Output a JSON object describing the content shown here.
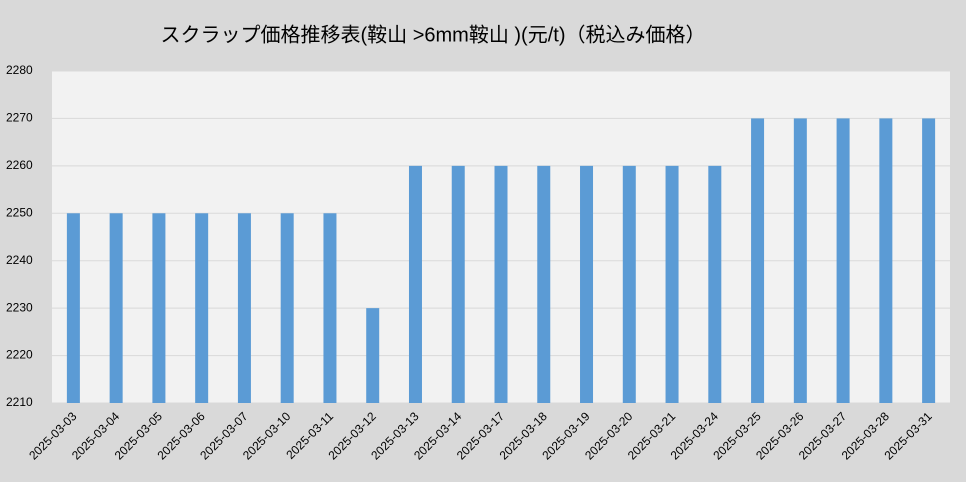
{
  "chart_data": {
    "type": "bar",
    "title": "スクラップ価格推移表(鞍山 >6mm鞍山 )(元/t)（税込み価格）",
    "categories": [
      "2025-03-03",
      "2025-03-04",
      "2025-03-05",
      "2025-03-06",
      "2025-03-07",
      "2025-03-10",
      "2025-03-11",
      "2025-03-12",
      "2025-03-13",
      "2025-03-14",
      "2025-03-17",
      "2025-03-18",
      "2025-03-19",
      "2025-03-20",
      "2025-03-21",
      "2025-03-24",
      "2025-03-25",
      "2025-03-26",
      "2025-03-27",
      "2025-03-28",
      "2025-03-31"
    ],
    "values": [
      2250,
      2250,
      2250,
      2250,
      2250,
      2250,
      2250,
      2230,
      2260,
      2260,
      2260,
      2260,
      2260,
      2260,
      2260,
      2260,
      2270,
      2270,
      2270,
      2270,
      2270
    ],
    "color": "#5b9bd5",
    "ylim": [
      2210,
      2280
    ],
    "yticks": [
      2210,
      2220,
      2230,
      2240,
      2250,
      2260,
      2270,
      2280
    ],
    "grid": true
  }
}
